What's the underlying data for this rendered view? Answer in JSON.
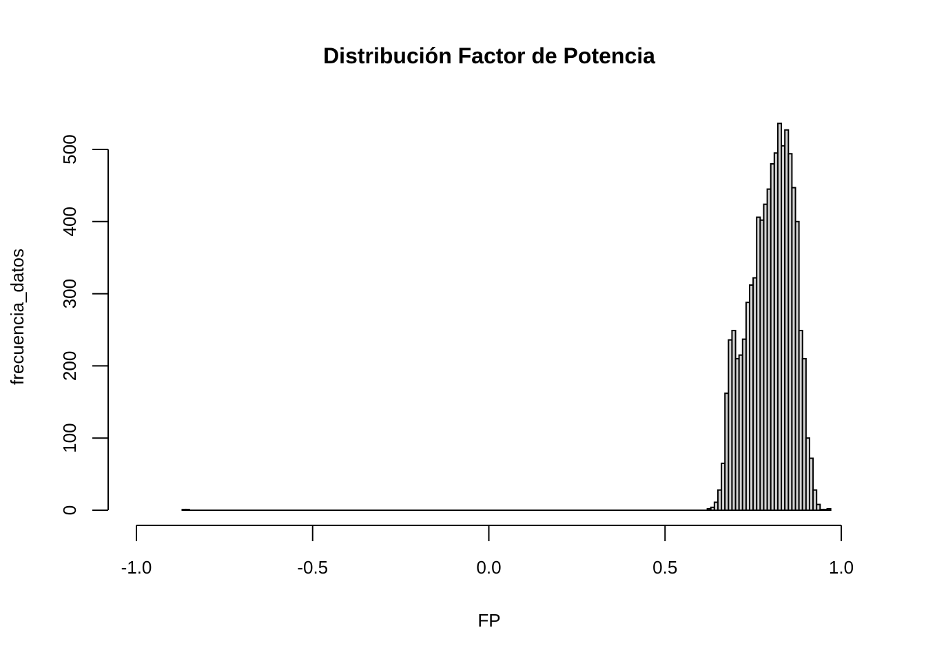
{
  "chart_data": {
    "type": "bar",
    "title": "Distribución Factor de Potencia",
    "xlabel": "FP",
    "ylabel": "frecuencia_datos",
    "xlim": [
      -1.0,
      1.0
    ],
    "ylim": [
      0,
      500
    ],
    "x_ticks": [
      "-1.0",
      "-0.5",
      "0.0",
      "0.5",
      "1.0"
    ],
    "x_tick_values": [
      -1.0,
      -0.5,
      0.0,
      0.5,
      1.0
    ],
    "y_ticks": [
      "0",
      "100",
      "200",
      "300",
      "400",
      "500"
    ],
    "y_tick_values": [
      0,
      100,
      200,
      300,
      400,
      500
    ],
    "bin_width": 0.01,
    "bin_start": -0.87,
    "values": [
      1,
      1,
      0,
      0,
      0,
      0,
      0,
      0,
      0,
      0,
      0,
      0,
      0,
      0,
      0,
      0,
      0,
      0,
      0,
      0,
      0,
      0,
      0,
      0,
      0,
      0,
      0,
      0,
      0,
      0,
      0,
      0,
      0,
      0,
      0,
      0,
      0,
      0,
      0,
      0,
      0,
      0,
      0,
      0,
      0,
      0,
      0,
      0,
      0,
      0,
      0,
      0,
      0,
      0,
      0,
      0,
      0,
      0,
      0,
      0,
      0,
      0,
      0,
      0,
      0,
      0,
      0,
      0,
      0,
      0,
      0,
      0,
      0,
      0,
      0,
      0,
      0,
      0,
      0,
      0,
      0,
      0,
      0,
      0,
      0,
      0,
      0,
      0,
      0,
      0,
      0,
      0,
      0,
      0,
      0,
      0,
      0,
      0,
      0,
      0,
      0,
      0,
      0,
      0,
      0,
      0,
      0,
      0,
      0,
      0,
      0,
      0,
      0,
      0,
      0,
      0,
      0,
      0,
      0,
      0,
      0,
      0,
      0,
      0,
      0,
      0,
      0,
      0,
      0,
      0,
      0,
      0,
      0,
      0,
      0,
      0,
      0,
      0,
      0,
      0,
      0,
      0,
      0,
      0,
      0,
      0,
      0,
      0,
      0,
      2,
      4,
      11,
      28,
      65,
      162,
      236,
      249,
      210,
      215,
      237,
      288,
      312,
      322,
      406,
      402,
      424,
      445,
      480,
      495,
      536,
      505,
      527,
      494,
      447,
      400,
      249,
      210,
      100,
      72,
      28,
      8,
      1,
      1,
      2
    ],
    "grid": false,
    "legend": "none",
    "colors": {
      "bar_fill": "#d3d3d3",
      "bar_stroke": "#000000",
      "text": "#000000",
      "background": "#ffffff"
    }
  }
}
